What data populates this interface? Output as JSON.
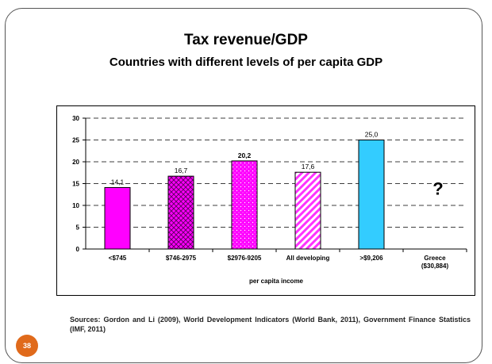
{
  "slide": {
    "title": "Tax revenue/GDP",
    "subtitle": "Countries with different levels of per capita GDP",
    "sources": "Sources: Gordon and Li (2009), World Development Indicators (World Bank, 2011), Government Finance Statistics (IMF, 2011)",
    "page_number": "38"
  },
  "chart_data": {
    "type": "bar",
    "title": "",
    "xlabel": "per capita income",
    "ylabel": "",
    "ylim": [
      0,
      30
    ],
    "yticks": [
      0,
      5,
      10,
      15,
      20,
      25,
      30
    ],
    "grid": true,
    "legend": "none",
    "categories": [
      "<$745",
      "$746-2975",
      "$2976-9205",
      "All developing",
      ">$9,206",
      "Greece ($30,884)"
    ],
    "values": [
      14.1,
      16.7,
      20.2,
      17.6,
      25.0,
      null
    ],
    "value_labels": [
      "14,1",
      "16,7",
      "20,2",
      "17,6",
      "25,0",
      "?"
    ],
    "bar_fills": [
      "solid",
      "crosshatch",
      "dots",
      "diagonal",
      "solid",
      "none"
    ],
    "colors": [
      "#ff00ff",
      "#cc00cc",
      "#ff00ff",
      "#ff33ff",
      "#33ccff",
      "#ffffff"
    ]
  }
}
